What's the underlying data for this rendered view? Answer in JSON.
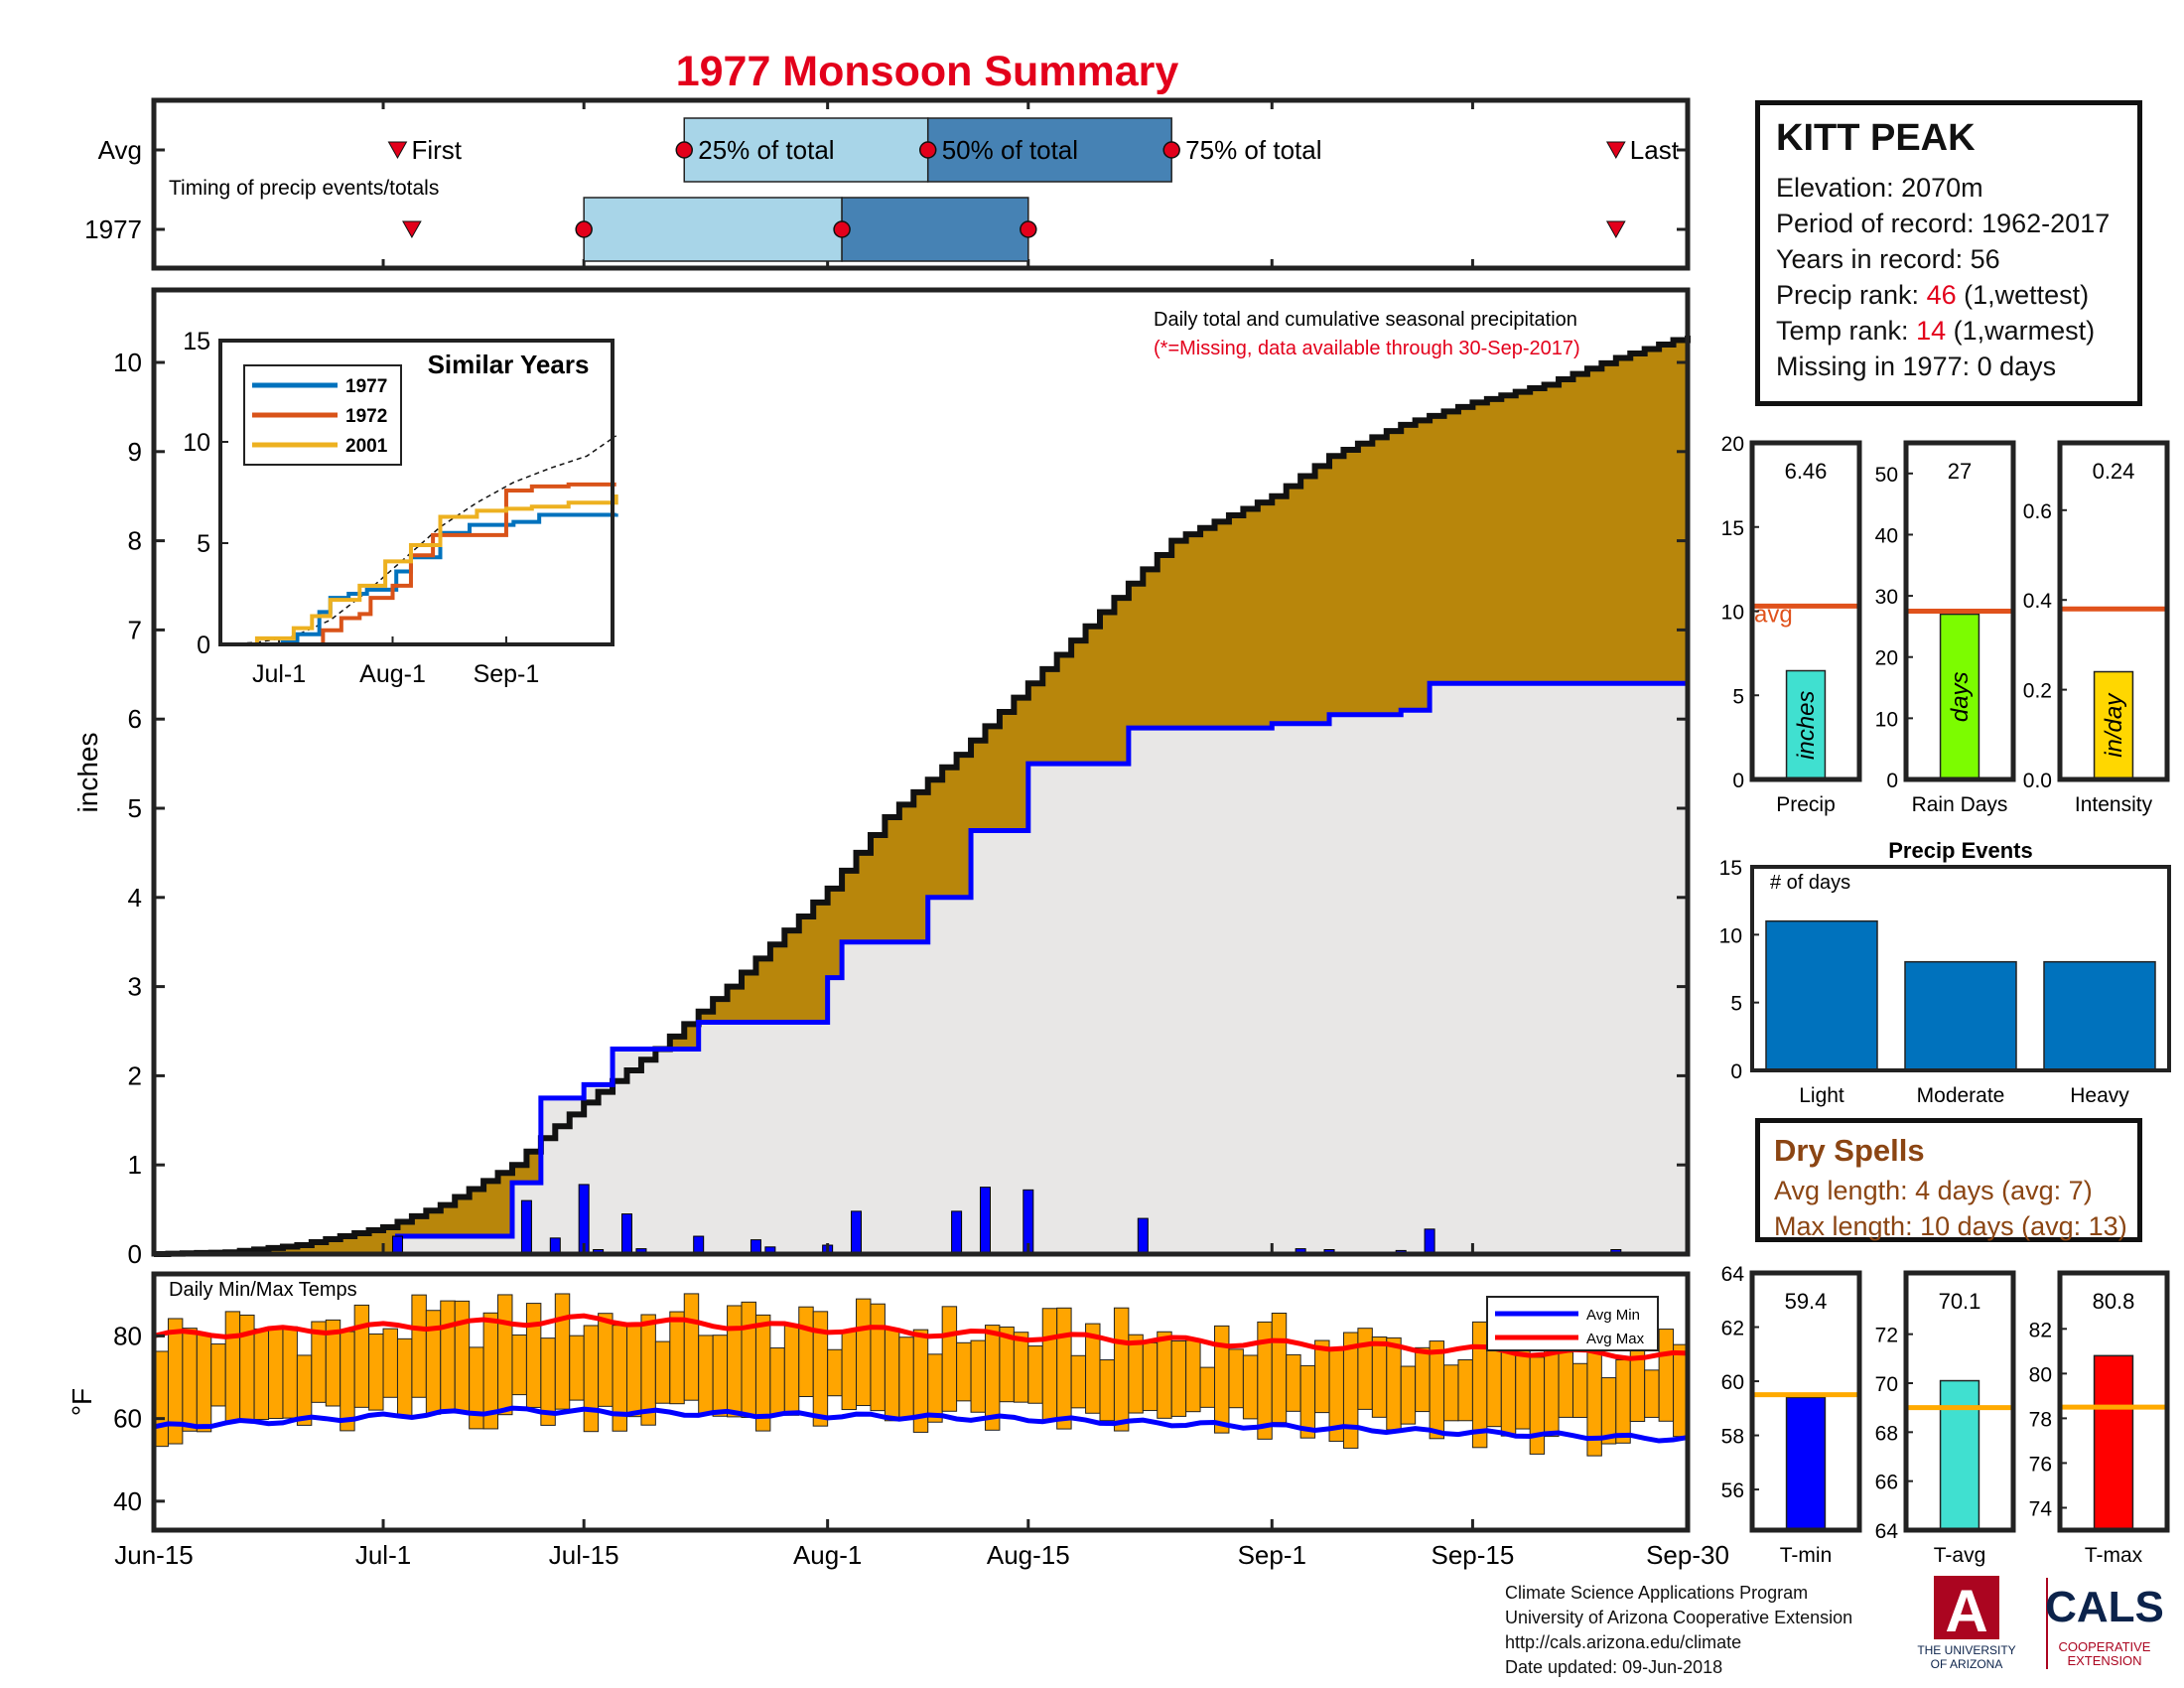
{
  "title": "1977 Monsoon Summary",
  "colors": {
    "title": "#e3001b",
    "cum_avg_fill": "#b8860b",
    "cum_year_fill": "#e8e7e6",
    "cum_year_line": "#0000ff",
    "daily_bar": "#0000ff",
    "temp_bar": "#ffa500",
    "avg_max": "#ff0000",
    "avg_min": "#0000ff",
    "timing_light": "#a8d5e8",
    "timing_dark": "#4682b4",
    "marker": "#e3001b",
    "avg_line": "#e0521c",
    "temp_avg_line": "#ffaa00"
  },
  "station": {
    "name": "KITT PEAK",
    "elevation": "Elevation: 2070m",
    "period": "Period of record: 1962-2017",
    "years": "Years in record: 56",
    "precip_rank_label": "Precip rank: ",
    "precip_rank_value": "46",
    "precip_rank_note": " (1,wettest)",
    "temp_rank_label": "Temp rank: ",
    "temp_rank_value": "14",
    "temp_rank_note": " (1,warmest)",
    "missing": "Missing in 1977: 0 days"
  },
  "timing": {
    "row_labels": [
      "Avg",
      "1977"
    ],
    "caption": "Timing of precip events/totals",
    "avg_labels": {
      "first": "First",
      "p25": "25% of total",
      "p50": "50% of total",
      "p75": "75% of total",
      "last": "Last"
    },
    "avg": {
      "first": "Jul-2",
      "p25": "Jul-22",
      "p50": "Aug-8",
      "p75": "Aug-25",
      "last": "Sep-25"
    },
    "year": {
      "first": "Jul-3",
      "p25": "Jul-15",
      "p50": "Aug-2",
      "p75": "Aug-15",
      "last": "Sep-25"
    }
  },
  "x_ticks": [
    "Jun-15",
    "Jul-1",
    "Jul-15",
    "Aug-1",
    "Aug-15",
    "Sep-1",
    "Sep-15",
    "Sep-30"
  ],
  "annotations": {
    "main_title": "Daily total and cumulative seasonal precipitation",
    "missing_note": "(*=Missing, data available through 30-Sep-2017)",
    "temps_title": "Daily Min/Max Temps"
  },
  "chart_data": [
    {
      "type": "area",
      "name": "cumulative",
      "ylabel": "inches",
      "ylim": [
        0,
        10.5
      ],
      "yticks": [
        0,
        1,
        2,
        3,
        4,
        5,
        6,
        7,
        8,
        9,
        10
      ],
      "x_dates": [
        "Jun-15",
        "Jun-20",
        "Jun-25",
        "Jul-1",
        "Jul-5",
        "Jul-10",
        "Jul-12",
        "Jul-15",
        "Jul-20",
        "Jul-25",
        "Aug-1",
        "Aug-5",
        "Aug-10",
        "Aug-15",
        "Aug-20",
        "Aug-25",
        "Sep-1",
        "Sep-5",
        "Sep-10",
        "Sep-15",
        "Sep-20",
        "Sep-25",
        "Sep-30"
      ],
      "avg_cumulative": [
        0,
        0.02,
        0.1,
        0.3,
        0.55,
        1.0,
        1.3,
        1.7,
        2.3,
        3.0,
        4.1,
        4.9,
        5.6,
        6.4,
        7.2,
        8.0,
        8.5,
        8.95,
        9.3,
        9.55,
        9.75,
        10.05,
        10.3
      ],
      "year_cumulative": [
        {
          "x": "Jun-15",
          "y": 0
        },
        {
          "x": "Jul-1",
          "y": 0
        },
        {
          "x": "Jul-2",
          "y": 0.2
        },
        {
          "x": "Jul-10",
          "y": 0.8
        },
        {
          "x": "Jul-12",
          "y": 1.75
        },
        {
          "x": "Jul-15",
          "y": 1.9
        },
        {
          "x": "Jul-17",
          "y": 2.3
        },
        {
          "x": "Jul-23",
          "y": 2.6
        },
        {
          "x": "Aug-1",
          "y": 3.1
        },
        {
          "x": "Aug-2",
          "y": 3.5
        },
        {
          "x": "Aug-8",
          "y": 4.0
        },
        {
          "x": "Aug-11",
          "y": 4.75
        },
        {
          "x": "Aug-15",
          "y": 5.5
        },
        {
          "x": "Aug-22",
          "y": 5.9
        },
        {
          "x": "Sep-1",
          "y": 5.95
        },
        {
          "x": "Sep-5",
          "y": 6.05
        },
        {
          "x": "Sep-10",
          "y": 6.1
        },
        {
          "x": "Sep-12",
          "y": 6.4
        },
        {
          "x": "Sep-30",
          "y": 6.46
        }
      ],
      "daily_precip": [
        {
          "x": "Jul-2",
          "y": 0.2
        },
        {
          "x": "Jul-11",
          "y": 0.6
        },
        {
          "x": "Jul-13",
          "y": 0.18
        },
        {
          "x": "Jul-15",
          "y": 0.78
        },
        {
          "x": "Jul-16",
          "y": 0.05
        },
        {
          "x": "Jul-18",
          "y": 0.45
        },
        {
          "x": "Jul-19",
          "y": 0.06
        },
        {
          "x": "Jul-23",
          "y": 0.2
        },
        {
          "x": "Jul-27",
          "y": 0.16
        },
        {
          "x": "Jul-28",
          "y": 0.08
        },
        {
          "x": "Aug-1",
          "y": 0.1
        },
        {
          "x": "Aug-3",
          "y": 0.48
        },
        {
          "x": "Aug-10",
          "y": 0.48
        },
        {
          "x": "Aug-12",
          "y": 0.75
        },
        {
          "x": "Aug-15",
          "y": 0.72
        },
        {
          "x": "Aug-23",
          "y": 0.4
        },
        {
          "x": "Sep-3",
          "y": 0.06
        },
        {
          "x": "Sep-5",
          "y": 0.05
        },
        {
          "x": "Sep-10",
          "y": 0.04
        },
        {
          "x": "Sep-12",
          "y": 0.28
        },
        {
          "x": "Sep-25",
          "y": 0.05
        }
      ]
    },
    {
      "type": "line",
      "name": "similar_years",
      "title": "Similar Years",
      "ylim": [
        0,
        15
      ],
      "yticks": [
        0,
        5,
        10,
        15
      ],
      "xticks": [
        "Jul-1",
        "Aug-1",
        "Sep-1"
      ],
      "series": [
        {
          "name": "1977",
          "color": "#0072bd",
          "points": [
            [
              0,
              0
            ],
            [
              17,
              0.1
            ],
            [
              21,
              0.5
            ],
            [
              27,
              1.6
            ],
            [
              30,
              2.3
            ],
            [
              35,
              2.5
            ],
            [
              40,
              2.7
            ],
            [
              48,
              3.6
            ],
            [
              52,
              4.3
            ],
            [
              60,
              5.5
            ],
            [
              68,
              5.9
            ],
            [
              80,
              6.05
            ],
            [
              87,
              6.4
            ],
            [
              108,
              6.46
            ]
          ]
        },
        {
          "name": "1972",
          "color": "#d95319",
          "points": [
            [
              0,
              0
            ],
            [
              25,
              0
            ],
            [
              28,
              0.7
            ],
            [
              33,
              1.3
            ],
            [
              38,
              1.5
            ],
            [
              41,
              2.3
            ],
            [
              47,
              2.9
            ],
            [
              52,
              4.4
            ],
            [
              58,
              5.4
            ],
            [
              70,
              5.4
            ],
            [
              78,
              7.6
            ],
            [
              85,
              7.8
            ],
            [
              95,
              7.9
            ],
            [
              108,
              7.9
            ]
          ]
        },
        {
          "name": "2001",
          "color": "#edb120",
          "points": [
            [
              0,
              0
            ],
            [
              10,
              0.3
            ],
            [
              20,
              0.8
            ],
            [
              25,
              1.4
            ],
            [
              30,
              2.2
            ],
            [
              38,
              2.9
            ],
            [
              45,
              4.1
            ],
            [
              52,
              4.9
            ],
            [
              60,
              6.3
            ],
            [
              70,
              6.6
            ],
            [
              78,
              6.7
            ],
            [
              85,
              6.8
            ],
            [
              95,
              7.0
            ],
            [
              108,
              7.4
            ]
          ]
        }
      ],
      "avg_points": [
        [
          0,
          0
        ],
        [
          10,
          0.1
        ],
        [
          20,
          0.4
        ],
        [
          30,
          1.2
        ],
        [
          40,
          2.6
        ],
        [
          50,
          4.2
        ],
        [
          60,
          5.8
        ],
        [
          70,
          7.0
        ],
        [
          80,
          8.0
        ],
        [
          90,
          8.7
        ],
        [
          100,
          9.3
        ],
        [
          108,
          10.3
        ]
      ]
    },
    {
      "type": "bar",
      "name": "temps",
      "ylabel": "°F",
      "ylim": [
        33,
        95
      ],
      "yticks": [
        40,
        60,
        80
      ],
      "legend": [
        "Avg Min",
        "Avg Max"
      ],
      "avg_max": {
        "start": 80,
        "peak": 84,
        "mid": 80,
        "end": 75
      },
      "avg_min": {
        "start": 58,
        "peak": 62,
        "mid": 60,
        "end": 55
      }
    },
    {
      "type": "bar",
      "name": "precip_total",
      "categories": [
        "Precip"
      ],
      "values": [
        6.46
      ],
      "value_label": "6.46",
      "bar_text": "inches",
      "avg": 10.3,
      "avg_label": "avg",
      "ylim": [
        0,
        20
      ],
      "yticks": [
        0,
        5,
        10,
        15,
        20
      ],
      "color": "#40e0d0"
    },
    {
      "type": "bar",
      "name": "rain_days",
      "categories": [
        "Rain Days"
      ],
      "values": [
        27
      ],
      "value_label": "27",
      "bar_text": "days",
      "avg": 27.5,
      "ylim": [
        0,
        55
      ],
      "yticks": [
        0,
        10,
        20,
        30,
        40,
        50
      ],
      "color": "#7cfc00"
    },
    {
      "type": "bar",
      "name": "intensity",
      "categories": [
        "Intensity"
      ],
      "values": [
        0.24
      ],
      "value_label": "0.24",
      "bar_text": "in/day",
      "avg": 0.38,
      "ylim": [
        0,
        0.75
      ],
      "yticks": [
        0,
        0.2,
        0.4,
        0.6
      ],
      "color": "#ffd700"
    },
    {
      "type": "bar",
      "name": "precip_events",
      "title": "Precip Events",
      "ylabel_note": "# of days",
      "categories": [
        "Light",
        "Moderate",
        "Heavy"
      ],
      "values": [
        11,
        8,
        8
      ],
      "ylim": [
        0,
        15
      ],
      "yticks": [
        0,
        5,
        10,
        15
      ],
      "color": "#0072bd"
    },
    {
      "type": "bar",
      "name": "t_min",
      "categories": [
        "T-min"
      ],
      "values": [
        59.4
      ],
      "value_label": "59.4",
      "avg": 59.5,
      "ylim": [
        54.5,
        64
      ],
      "yticks": [
        56,
        58,
        60,
        62,
        64
      ],
      "color": "#0000ff"
    },
    {
      "type": "bar",
      "name": "t_avg",
      "categories": [
        "T-avg"
      ],
      "values": [
        70.1
      ],
      "value_label": "70.1",
      "avg": 69.0,
      "ylim": [
        64,
        74.5
      ],
      "yticks": [
        64,
        66,
        68,
        70,
        72
      ],
      "color": "#40e0d0"
    },
    {
      "type": "bar",
      "name": "t_max",
      "categories": [
        "T-max"
      ],
      "values": [
        80.8
      ],
      "value_label": "80.8",
      "avg": 78.5,
      "ylim": [
        73,
        84.5
      ],
      "yticks": [
        74,
        76,
        78,
        80,
        82
      ],
      "color": "#ff0000"
    }
  ],
  "dry_spells": {
    "title": "Dry Spells",
    "avg_length": "Avg length: 4 days (avg: 7)",
    "max_length": "Max length: 10 days (avg: 13)"
  },
  "footer": {
    "line1": "Climate Science Applications Program",
    "line2": "University of Arizona Cooperative Extension",
    "line3": "http://cals.arizona.edu/climate",
    "line4": " Date updated: 09-Jun-2018"
  },
  "logos": {
    "ua_letter": "A",
    "ua_line1": "THE UNIVERSITY",
    "ua_line2": "OF ARIZONA",
    "cals": "CALS",
    "cals_line1": "COOPERATIVE",
    "cals_line2": "EXTENSION"
  }
}
